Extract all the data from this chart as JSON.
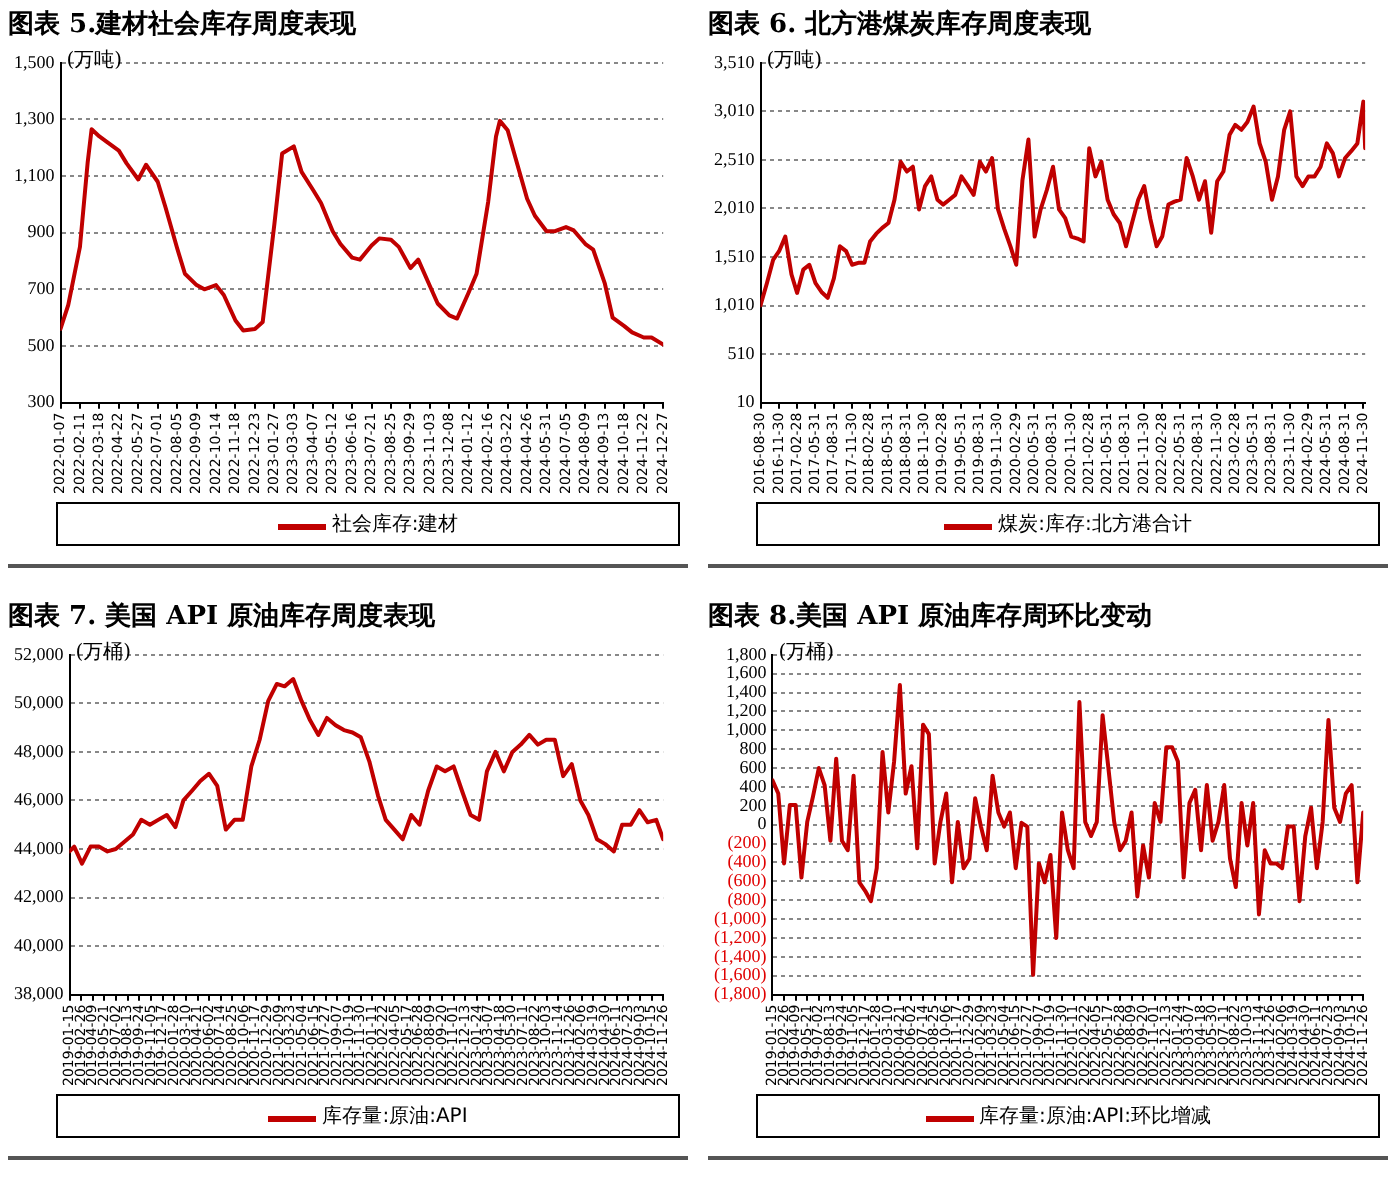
{
  "chart_data": [
    {
      "type": "line",
      "title": "图表 5.建材社会库存周度表现",
      "ylabel": "(万吨)",
      "legend": "bottom",
      "grid": "y",
      "xlim": [
        "2022-01-07",
        "2024-12-27"
      ],
      "xticks": [
        "2022-01-07",
        "2022-02-11",
        "2022-03-18",
        "2022-04-22",
        "2022-05-27",
        "2022-07-01",
        "2022-08-05",
        "2022-09-09",
        "2022-10-14",
        "2022-11-18",
        "2022-12-23",
        "2023-01-27",
        "2023-03-03",
        "2023-04-07",
        "2023-05-12",
        "2023-06-16",
        "2023-07-21",
        "2023-08-25",
        "2023-09-29",
        "2023-11-03",
        "2023-12-08",
        "2024-01-12",
        "2024-02-16",
        "2024-03-22",
        "2024-04-26",
        "2024-05-31",
        "2024-07-05",
        "2024-08-09",
        "2024-09-13",
        "2024-10-18",
        "2024-11-22",
        "2024-12-27"
      ],
      "ylim": [
        300,
        1500
      ],
      "yticks": [
        300,
        500,
        700,
        900,
        {
          "value": 1100,
          "label": "1,100"
        },
        {
          "value": 1300,
          "label": "1,300"
        },
        {
          "value": 1500,
          "label": "1,500"
        }
      ],
      "series": [
        {
          "name": "社会库存:建材",
          "color": "#c00000",
          "x": [
            "2022-01-07",
            "2022-01-21",
            "2022-02-11",
            "2022-02-25",
            "2022-03-04",
            "2022-03-18",
            "2022-04-01",
            "2022-04-22",
            "2022-05-06",
            "2022-05-27",
            "2022-06-10",
            "2022-07-01",
            "2022-07-15",
            "2022-08-05",
            "2022-08-19",
            "2022-09-09",
            "2022-09-23",
            "2022-10-14",
            "2022-10-28",
            "2022-11-18",
            "2022-12-02",
            "2022-12-23",
            "2023-01-06",
            "2023-01-27",
            "2023-02-10",
            "2023-03-03",
            "2023-03-17",
            "2023-04-07",
            "2023-04-21",
            "2023-05-12",
            "2023-05-26",
            "2023-06-16",
            "2023-06-30",
            "2023-07-21",
            "2023-08-04",
            "2023-08-25",
            "2023-09-08",
            "2023-09-29",
            "2023-10-13",
            "2023-11-03",
            "2023-11-17",
            "2023-12-08",
            "2023-12-22",
            "2024-01-12",
            "2024-01-26",
            "2024-02-16",
            "2024-03-01",
            "2024-03-08",
            "2024-03-22",
            "2024-04-05",
            "2024-04-26",
            "2024-05-10",
            "2024-05-31",
            "2024-06-14",
            "2024-07-05",
            "2024-07-19",
            "2024-08-09",
            "2024-08-23",
            "2024-09-13",
            "2024-09-27",
            "2024-10-18",
            "2024-11-01",
            "2024-11-22",
            "2024-12-06",
            "2024-12-27"
          ],
          "values": [
            560,
            645,
            850,
            1150,
            1265,
            1240,
            1220,
            1190,
            1145,
            1088,
            1140,
            1080,
            990,
            845,
            755,
            715,
            700,
            715,
            680,
            590,
            555,
            560,
            585,
            930,
            1180,
            1205,
            1115,
            1050,
            1005,
            905,
            860,
            812,
            805,
            855,
            880,
            875,
            850,
            775,
            805,
            712,
            650,
            608,
            597,
            690,
            755,
            1010,
            1240,
            1295,
            1262,
            1165,
            1020,
            960,
            905,
            905,
            920,
            908,
            860,
            840,
            720,
            600,
            570,
            548,
            530,
            530,
            505
          ]
        }
      ]
    },
    {
      "type": "line",
      "title": "图表 6. 北方港煤炭库存周度表现",
      "ylabel": "(万吨)",
      "legend": "bottom",
      "grid": "y",
      "xlim": [
        "2016-08-30",
        "2024-12-10"
      ],
      "xticks": [
        "2016-08-30",
        "2016-11-30",
        "2017-02-28",
        "2017-05-31",
        "2017-08-31",
        "2017-11-30",
        "2018-02-28",
        "2018-05-31",
        "2018-08-31",
        "2018-11-30",
        "2019-02-28",
        "2019-05-31",
        "2019-08-31",
        "2019-11-30",
        "2020-02-29",
        "2020-05-31",
        "2020-08-31",
        "2020-11-30",
        "2021-02-28",
        "2021-05-31",
        "2021-08-31",
        "2021-11-30",
        "2022-02-28",
        "2022-05-31",
        "2022-08-31",
        "2022-11-30",
        "2023-02-28",
        "2023-05-31",
        "2023-08-31",
        "2023-11-30",
        "2024-02-29",
        "2024-05-31",
        "2024-08-31",
        "2024-11-30"
      ],
      "ylim": [
        10,
        3510
      ],
      "yticks": [
        10,
        510,
        {
          "value": 1010,
          "label": "1,010"
        },
        {
          "value": 1510,
          "label": "1,510"
        },
        {
          "value": 2010,
          "label": "2,010"
        },
        {
          "value": 2510,
          "label": "2,510"
        },
        {
          "value": 3010,
          "label": "3,010"
        },
        {
          "value": 3510,
          "label": "3,510"
        }
      ],
      "series": [
        {
          "name": "煤炭:库存:北方港合计",
          "color": "#c00000",
          "x": [
            "2016-08-30",
            "2016-10",
            "2016-11",
            "2016-12",
            "2017-01",
            "2017-02",
            "2017-03",
            "2017-04",
            "2017-05",
            "2017-06",
            "2017-07",
            "2017-08",
            "2017-09",
            "2017-10",
            "2017-11",
            "2017-12",
            "2018-01",
            "2018-02",
            "2018-03",
            "2018-04",
            "2018-05",
            "2018-06",
            "2018-07",
            "2018-08",
            "2018-09",
            "2018-10",
            "2018-11",
            "2018-12",
            "2019-01",
            "2019-02",
            "2019-03",
            "2019-04",
            "2019-05",
            "2019-06",
            "2019-07",
            "2019-08",
            "2019-09",
            "2019-10",
            "2019-11",
            "2019-12",
            "2020-01",
            "2020-02",
            "2020-03",
            "2020-04",
            "2020-05",
            "2020-06",
            "2020-07",
            "2020-08",
            "2020-09",
            "2020-10",
            "2020-11",
            "2020-12",
            "2021-01",
            "2021-02",
            "2021-03",
            "2021-04",
            "2021-05",
            "2021-06",
            "2021-07",
            "2021-08",
            "2021-09",
            "2021-10",
            "2021-11",
            "2021-12",
            "2022-01",
            "2022-02",
            "2022-03",
            "2022-04",
            "2022-05",
            "2022-06",
            "2022-07",
            "2022-08",
            "2022-09",
            "2022-10",
            "2022-11",
            "2022-12",
            "2023-01",
            "2023-02",
            "2023-03",
            "2023-04",
            "2023-05",
            "2023-06",
            "2023-07",
            "2023-08",
            "2023-09",
            "2023-10",
            "2023-11",
            "2023-12",
            "2024-01",
            "2024-02",
            "2024-03",
            "2024-04",
            "2024-05",
            "2024-06",
            "2024-07",
            "2024-08",
            "2024-09",
            "2024-10",
            "2024-11",
            "2024-12",
            "2024-12-10"
          ],
          "values": [
            1010,
            1240,
            1480,
            1570,
            1720,
            1330,
            1140,
            1380,
            1430,
            1240,
            1150,
            1090,
            1290,
            1620,
            1570,
            1430,
            1450,
            1450,
            1670,
            1750,
            1810,
            1860,
            2100,
            2490,
            2390,
            2440,
            2000,
            2240,
            2340,
            2100,
            2050,
            2100,
            2150,
            2340,
            2250,
            2150,
            2490,
            2390,
            2530,
            2000,
            1800,
            1620,
            1430,
            2300,
            2720,
            1720,
            2000,
            2200,
            2440,
            2000,
            1910,
            1720,
            1700,
            1670,
            2630,
            2340,
            2490,
            2100,
            1950,
            1860,
            1620,
            1860,
            2100,
            2240,
            1900,
            1620,
            1720,
            2050,
            2080,
            2100,
            2530,
            2340,
            2100,
            2290,
            1760,
            2290,
            2390,
            2770,
            2870,
            2820,
            2900,
            3060,
            2680,
            2490,
            2100,
            2340,
            2820,
            3010,
            2340,
            2240,
            2340,
            2340,
            2440,
            2680,
            2580,
            2340,
            2530,
            2600,
            2680,
            3110,
            2630
          ]
        }
      ]
    },
    {
      "type": "line",
      "title": "图表 7. 美国 API 原油库存周度表现",
      "ylabel": "(万桶)",
      "legend": "bottom",
      "grid": "y",
      "xlim": [
        "2019-01-15",
        "2024-11-26"
      ],
      "xticks": [
        "2019-01-15",
        "2019-02-26",
        "2019-04-09",
        "2019-05-21",
        "2019-07-02",
        "2019-08-13",
        "2019-09-24",
        "2019-11-05",
        "2019-12-17",
        "2020-01-28",
        "2020-03-10",
        "2020-04-21",
        "2020-06-02",
        "2020-07-14",
        "2020-08-25",
        "2020-10-06",
        "2020-11-17",
        "2020-12-29",
        "2021-02-09",
        "2021-03-23",
        "2021-05-04",
        "2021-06-15",
        "2021-07-27",
        "2021-09-07",
        "2021-10-19",
        "2021-11-30",
        "2022-01-11",
        "2022-02-22",
        "2022-04-05",
        "2022-05-17",
        "2022-06-28",
        "2022-08-09",
        "2022-09-20",
        "2022-11-01",
        "2022-12-13",
        "2023-01-24",
        "2023-03-07",
        "2023-04-18",
        "2023-05-30",
        "2023-07-11",
        "2023-08-22",
        "2023-10-03",
        "2023-11-14",
        "2023-12-26",
        "2024-02-06",
        "2024-03-19",
        "2024-04-30",
        "2024-06-11",
        "2024-07-23",
        "2024-09-03",
        "2024-10-15",
        "2024-11-26"
      ],
      "ylim": [
        38000,
        52000
      ],
      "yticks": [
        {
          "value": 38000,
          "label": "38,000"
        },
        {
          "value": 40000,
          "label": "40,000"
        },
        {
          "value": 42000,
          "label": "42,000"
        },
        {
          "value": 44000,
          "label": "44,000"
        },
        {
          "value": 46000,
          "label": "46,000"
        },
        {
          "value": 48000,
          "label": "48,000"
        },
        {
          "value": 50000,
          "label": "50,000"
        },
        {
          "value": 52000,
          "label": "52,000"
        }
      ],
      "series": [
        {
          "name": "库存量:原油:API",
          "color": "#c00000",
          "x": [
            "2019-01-15",
            "2019-02",
            "2019-03",
            "2019-04",
            "2019-05",
            "2019-06",
            "2019-07",
            "2019-08",
            "2019-09",
            "2019-10",
            "2019-11",
            "2019-12",
            "2020-01",
            "2020-02",
            "2020-03",
            "2020-04",
            "2020-05",
            "2020-06",
            "2020-07",
            "2020-08",
            "2020-09",
            "2020-10",
            "2020-11",
            "2020-12",
            "2021-01",
            "2021-02",
            "2021-03",
            "2021-04",
            "2021-05",
            "2021-06",
            "2021-07",
            "2021-08",
            "2021-09",
            "2021-10",
            "2021-11",
            "2021-12",
            "2022-01",
            "2022-02",
            "2022-03",
            "2022-04",
            "2022-05",
            "2022-06",
            "2022-07",
            "2022-08",
            "2022-09",
            "2022-10",
            "2022-11",
            "2022-12",
            "2023-01",
            "2023-02",
            "2023-03",
            "2023-04",
            "2023-05",
            "2023-06",
            "2023-07",
            "2023-08",
            "2023-09",
            "2023-10",
            "2023-11",
            "2023-12",
            "2024-01",
            "2024-02",
            "2024-03",
            "2024-04",
            "2024-05",
            "2024-06",
            "2024-07",
            "2024-08",
            "2024-09",
            "2024-10",
            "2024-11",
            "2024-11-26"
          ],
          "values": [
            43900,
            44100,
            43400,
            44100,
            44100,
            43900,
            44000,
            44300,
            44600,
            45200,
            45000,
            45200,
            45400,
            44900,
            46000,
            46400,
            46800,
            47100,
            46600,
            44800,
            45200,
            45200,
            47400,
            48500,
            50100,
            50800,
            50700,
            51000,
            50100,
            49300,
            48700,
            49400,
            49100,
            48900,
            48800,
            48600,
            47600,
            46200,
            45200,
            44800,
            44400,
            45400,
            45000,
            46400,
            47400,
            47200,
            47400,
            46400,
            45400,
            45200,
            47200,
            48000,
            47200,
            48000,
            48300,
            48700,
            48300,
            48500,
            48500,
            47000,
            47500,
            46000,
            45400,
            44400,
            44200,
            43900,
            45000,
            45000,
            45600,
            45100,
            45200,
            44400
          ]
        }
      ]
    },
    {
      "type": "line",
      "title": "图表 8.美国 API 原油库存周环比变动",
      "ylabel": "(万桶)",
      "legend": "bottom",
      "grid": "y",
      "xlim": [
        "2019-01-15",
        "2024-11-26"
      ],
      "xticks": [
        "2019-01-15",
        "2019-02-26",
        "2019-04-09",
        "2019-05-21",
        "2019-07-02",
        "2019-08-13",
        "2019-09-24",
        "2019-11-05",
        "2019-12-17",
        "2020-01-28",
        "2020-03-10",
        "2020-04-21",
        "2020-06-02",
        "2020-07-14",
        "2020-08-25",
        "2020-10-06",
        "2020-11-17",
        "2020-12-29",
        "2021-02-09",
        "2021-03-23",
        "2021-05-04",
        "2021-06-15",
        "2021-07-27",
        "2021-09-07",
        "2021-10-19",
        "2021-11-30",
        "2022-01-11",
        "2022-02-22",
        "2022-04-05",
        "2022-05-17",
        "2022-06-28",
        "2022-08-09",
        "2022-09-20",
        "2022-11-01",
        "2022-12-13",
        "2023-01-24",
        "2023-03-07",
        "2023-04-18",
        "2023-05-30",
        "2023-07-11",
        "2023-08-22",
        "2023-10-03",
        "2023-11-14",
        "2023-12-26",
        "2024-02-06",
        "2024-03-19",
        "2024-04-30",
        "2024-06-11",
        "2024-07-23",
        "2024-09-03",
        "2024-10-15",
        "2024-11-26"
      ],
      "ylim": [
        -1800,
        1800
      ],
      "yticks": [
        {
          "value": -1800,
          "label": "(1,800)"
        },
        {
          "value": -1600,
          "label": "(1,600)"
        },
        {
          "value": -1400,
          "label": "(1,400)"
        },
        {
          "value": -1200,
          "label": "(1,200)"
        },
        {
          "value": -1000,
          "label": "(1,000)"
        },
        {
          "value": -800,
          "label": "(800)"
        },
        {
          "value": -600,
          "label": "(600)"
        },
        {
          "value": -400,
          "label": "(400)"
        },
        {
          "value": -200,
          "label": "(200)"
        },
        0,
        200,
        400,
        600,
        800,
        {
          "value": 1000,
          "label": "1,000"
        },
        {
          "value": 1200,
          "label": "1,200"
        },
        {
          "value": 1400,
          "label": "1,400"
        },
        {
          "value": 1600,
          "label": "1,600"
        },
        {
          "value": 1800,
          "label": "1,800"
        }
      ],
      "series": [
        {
          "name": "库存量:原油:API:环比增减",
          "color": "#c00000",
          "x": [
            "2019-01-15",
            "2019-02-05",
            "2019-02-26",
            "2019-03-19",
            "2019-04-09",
            "2019-04-30",
            "2019-05-21",
            "2019-06-11",
            "2019-07-02",
            "2019-07-23",
            "2019-08-13",
            "2019-09-03",
            "2019-09-24",
            "2019-10-15",
            "2019-11-05",
            "2019-11-26",
            "2019-12-17",
            "2020-01-07",
            "2020-01-28",
            "2020-02-18",
            "2020-03-10",
            "2020-03-31",
            "2020-04-21",
            "2020-05-12",
            "2020-06-02",
            "2020-06-23",
            "2020-07-14",
            "2020-08-04",
            "2020-08-25",
            "2020-09-15",
            "2020-10-06",
            "2020-10-27",
            "2020-11-17",
            "2020-12-08",
            "2020-12-29",
            "2021-01-19",
            "2021-02-09",
            "2021-03-02",
            "2021-03-23",
            "2021-04-13",
            "2021-05-04",
            "2021-05-25",
            "2021-06-15",
            "2021-07-06",
            "2021-07-27",
            "2021-08-17",
            "2021-09-07",
            "2021-09-28",
            "2021-10-19",
            "2021-11-09",
            "2021-11-30",
            "2021-12-21",
            "2022-01-11",
            "2022-02-01",
            "2022-02-22",
            "2022-03-15",
            "2022-04-05",
            "2022-04-26",
            "2022-05-17",
            "2022-06-07",
            "2022-06-28",
            "2022-07-19",
            "2022-08-09",
            "2022-08-30",
            "2022-09-20",
            "2022-10-11",
            "2022-11-01",
            "2022-11-22",
            "2022-12-13",
            "2023-01-03",
            "2023-01-24",
            "2023-02-14",
            "2023-03-07",
            "2023-03-28",
            "2023-04-18",
            "2023-05-09",
            "2023-05-30",
            "2023-06-20",
            "2023-07-11",
            "2023-08-01",
            "2023-08-22",
            "2023-09-12",
            "2023-10-03",
            "2023-10-24",
            "2023-11-14",
            "2023-12-05",
            "2023-12-26",
            "2024-01-16",
            "2024-02-06",
            "2024-02-27",
            "2024-03-19",
            "2024-04-09",
            "2024-04-30",
            "2024-05-21",
            "2024-06-11",
            "2024-07-02",
            "2024-07-23",
            "2024-08-13",
            "2024-09-03",
            "2024-09-24",
            "2024-10-15",
            "2024-11-05",
            "2024-11-26"
          ],
          "values": [
            470,
            330,
            -410,
            210,
            210,
            -560,
            30,
            300,
            600,
            420,
            -170,
            700,
            -170,
            -270,
            520,
            -610,
            -700,
            -810,
            -460,
            770,
            130,
            670,
            1480,
            330,
            620,
            -250,
            1060,
            960,
            -410,
            30,
            330,
            -610,
            30,
            -460,
            -360,
            280,
            -20,
            -270,
            520,
            130,
            -20,
            130,
            -460,
            20,
            -20,
            -1590,
            -410,
            -610,
            -320,
            -1200,
            130,
            -270,
            -460,
            1300,
            30,
            -120,
            30,
            1160,
            600,
            30,
            -270,
            -170,
            130,
            -760,
            -220,
            -560,
            230,
            30,
            820,
            820,
            670,
            -560,
            230,
            370,
            -270,
            420,
            -170,
            30,
            420,
            -360,
            -660,
            230,
            -220,
            230,
            -950,
            -270,
            -410,
            -410,
            -460,
            -20,
            -20,
            -810,
            -120,
            180,
            -460,
            30,
            1110,
            180,
            30,
            330,
            420,
            -610,
            130
          ]
        }
      ]
    }
  ]
}
